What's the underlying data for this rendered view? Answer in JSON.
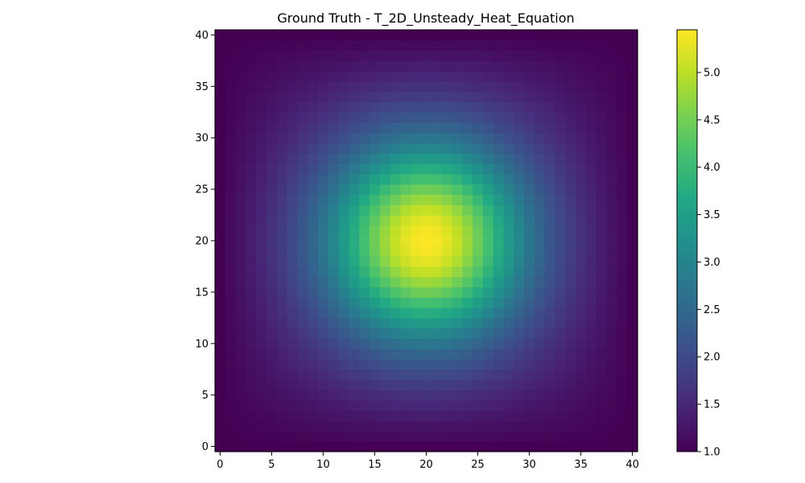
{
  "chart_data": {
    "type": "heatmap",
    "title": "Ground Truth - T_2D_Unsteady_Heat_Equation",
    "xlabel": "",
    "ylabel": "",
    "grid_size": [
      41,
      41
    ],
    "xlim": [
      -0.5,
      40.5
    ],
    "ylim": [
      -0.5,
      40.5
    ],
    "x_ticks": [
      0,
      5,
      10,
      15,
      20,
      25,
      30,
      35,
      40
    ],
    "y_ticks": [
      0,
      5,
      10,
      15,
      20,
      25,
      30,
      35,
      40
    ],
    "x_tick_labels": [
      "0",
      "5",
      "10",
      "15",
      "20",
      "25",
      "30",
      "35",
      "40"
    ],
    "y_tick_labels": [
      "0",
      "5",
      "10",
      "15",
      "20",
      "25",
      "30",
      "35",
      "40"
    ],
    "colormap": "viridis",
    "value_range": [
      1.0,
      5.45
    ],
    "peak": {
      "x": 20,
      "y": 20,
      "value": 5.45
    },
    "boundary_value": 1.0,
    "colorbar": {
      "ticks": [
        1.0,
        1.5,
        2.0,
        2.5,
        3.0,
        3.5,
        4.0,
        4.5,
        5.0
      ],
      "tick_labels": [
        "1.0",
        "1.5",
        "2.0",
        "2.5",
        "3.0",
        "3.5",
        "4.0",
        "4.5",
        "5.0"
      ]
    },
    "grid": false,
    "grid_rows": [
      {
        "i": 0
      },
      {
        "i": 1
      },
      {
        "i": 2
      },
      {
        "i": 3
      },
      {
        "i": 4
      },
      {
        "i": 5
      },
      {
        "i": 6
      },
      {
        "i": 7
      },
      {
        "i": 8
      },
      {
        "i": 9
      },
      {
        "i": 10
      },
      {
        "i": 11
      },
      {
        "i": 12
      },
      {
        "i": 13
      },
      {
        "i": 14
      },
      {
        "i": 15
      },
      {
        "i": 16
      },
      {
        "i": 17
      },
      {
        "i": 18
      },
      {
        "i": 19
      },
      {
        "i": 20
      },
      {
        "i": 21
      },
      {
        "i": 22
      },
      {
        "i": 23
      },
      {
        "i": 24
      },
      {
        "i": 25
      },
      {
        "i": 26
      },
      {
        "i": 27
      },
      {
        "i": 28
      },
      {
        "i": 29
      },
      {
        "i": 30
      },
      {
        "i": 31
      },
      {
        "i": 32
      },
      {
        "i": 33
      },
      {
        "i": 34
      },
      {
        "i": 35
      },
      {
        "i": 36
      },
      {
        "i": 37
      },
      {
        "i": 38
      },
      {
        "i": 39
      },
      {
        "i": 40
      }
    ]
  }
}
